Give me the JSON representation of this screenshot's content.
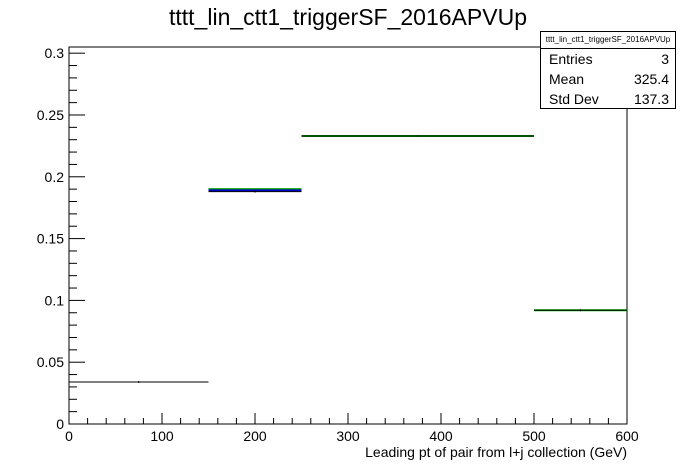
{
  "chart_data": {
    "type": "bar",
    "title": "tttt_lin_ctt1_triggerSF_2016APVUp",
    "xlabel": "Leading pt of pair from l+j collection (GeV)",
    "ylabel": "",
    "xlim": [
      0,
      600
    ],
    "ylim": [
      0,
      0.305
    ],
    "bins": [
      {
        "xlow": 0,
        "xhigh": 150,
        "value": 0.034
      },
      {
        "xlow": 150,
        "xhigh": 250,
        "value": 0.188
      },
      {
        "xlow": 250,
        "xhigh": 500,
        "value": 0.233
      },
      {
        "xlow": 500,
        "xhigh": 600,
        "value": 0.092
      }
    ],
    "overlay_series": [
      {
        "color": "#00aa00",
        "bins": [
          {
            "xlow": 150,
            "xhigh": 250,
            "value": 0.19
          },
          {
            "xlow": 250,
            "xhigh": 500,
            "value": 0.233
          },
          {
            "xlow": 500,
            "xhigh": 600,
            "value": 0.092
          }
        ]
      },
      {
        "color": "#0000cc",
        "bins": [
          {
            "xlow": 150,
            "xhigh": 250,
            "value": 0.189
          }
        ]
      }
    ],
    "xticks": [
      0,
      100,
      200,
      300,
      400,
      500,
      600
    ],
    "xtick_labels": [
      "0",
      "100",
      "200",
      "300",
      "400",
      "500",
      "600"
    ],
    "yticks": [
      0,
      0.05,
      0.1,
      0.15,
      0.2,
      0.25,
      0.3
    ],
    "ytick_labels": [
      "0",
      "0.05",
      "0.1",
      "0.15",
      "0.2",
      "0.25",
      "0.3"
    ],
    "grid": false,
    "stats_box": {
      "title": "tttt_lin_ctt1_triggerSF_2016APVUp",
      "rows": [
        {
          "label": "Entries",
          "value": "3"
        },
        {
          "label": "Mean",
          "value": "325.4"
        },
        {
          "label": "Std Dev",
          "value": "137.3"
        }
      ]
    }
  }
}
